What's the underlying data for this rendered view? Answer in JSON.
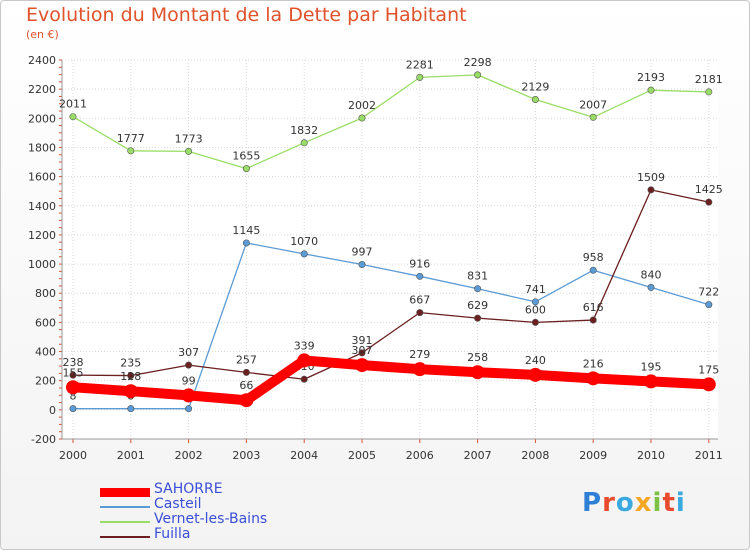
{
  "title": "Evolution du Montant de la Dette par Habitant",
  "subtitle": "(en €)",
  "logo": {
    "text": "Proxiti"
  },
  "chart_data": {
    "type": "line",
    "x": [
      "2000",
      "2001",
      "2002",
      "2003",
      "2004",
      "2005",
      "2006",
      "2007",
      "2008",
      "2009",
      "2010",
      "2011"
    ],
    "ylim": [
      -200,
      2400
    ],
    "yticks": [
      -200,
      0,
      200,
      400,
      600,
      800,
      1000,
      1200,
      1400,
      1600,
      1800,
      2000,
      2200,
      2400
    ],
    "ytick_labels": [
      "-200",
      "0",
      "200",
      "400",
      "600",
      "800",
      "1000",
      "1200",
      "1400",
      "1600",
      "1800",
      "2000",
      "2200",
      "2400"
    ],
    "grid": true,
    "legend_position": "bottom-left",
    "series": [
      {
        "name": "SAHORRE",
        "color": "#ff0000",
        "values": [
          155,
          128,
          99,
          66,
          339,
          307,
          279,
          258,
          240,
          216,
          195,
          175
        ]
      },
      {
        "name": "Casteil",
        "color": "#5b9bd5",
        "values": [
          8,
          8,
          8,
          1145,
          1070,
          997,
          916,
          831,
          741,
          958,
          840,
          722
        ]
      },
      {
        "name": "Vernet-les-Bains",
        "color": "#99dd66",
        "values": [
          2011,
          1777,
          1773,
          1655,
          1832,
          2002,
          2281,
          2298,
          2129,
          2007,
          2193,
          2181
        ]
      },
      {
        "name": "Fuilla",
        "color": "#6b1f1f",
        "values": [
          238,
          235,
          307,
          257,
          210,
          391,
          667,
          629,
          600,
          616,
          1509,
          1425
        ]
      }
    ]
  }
}
